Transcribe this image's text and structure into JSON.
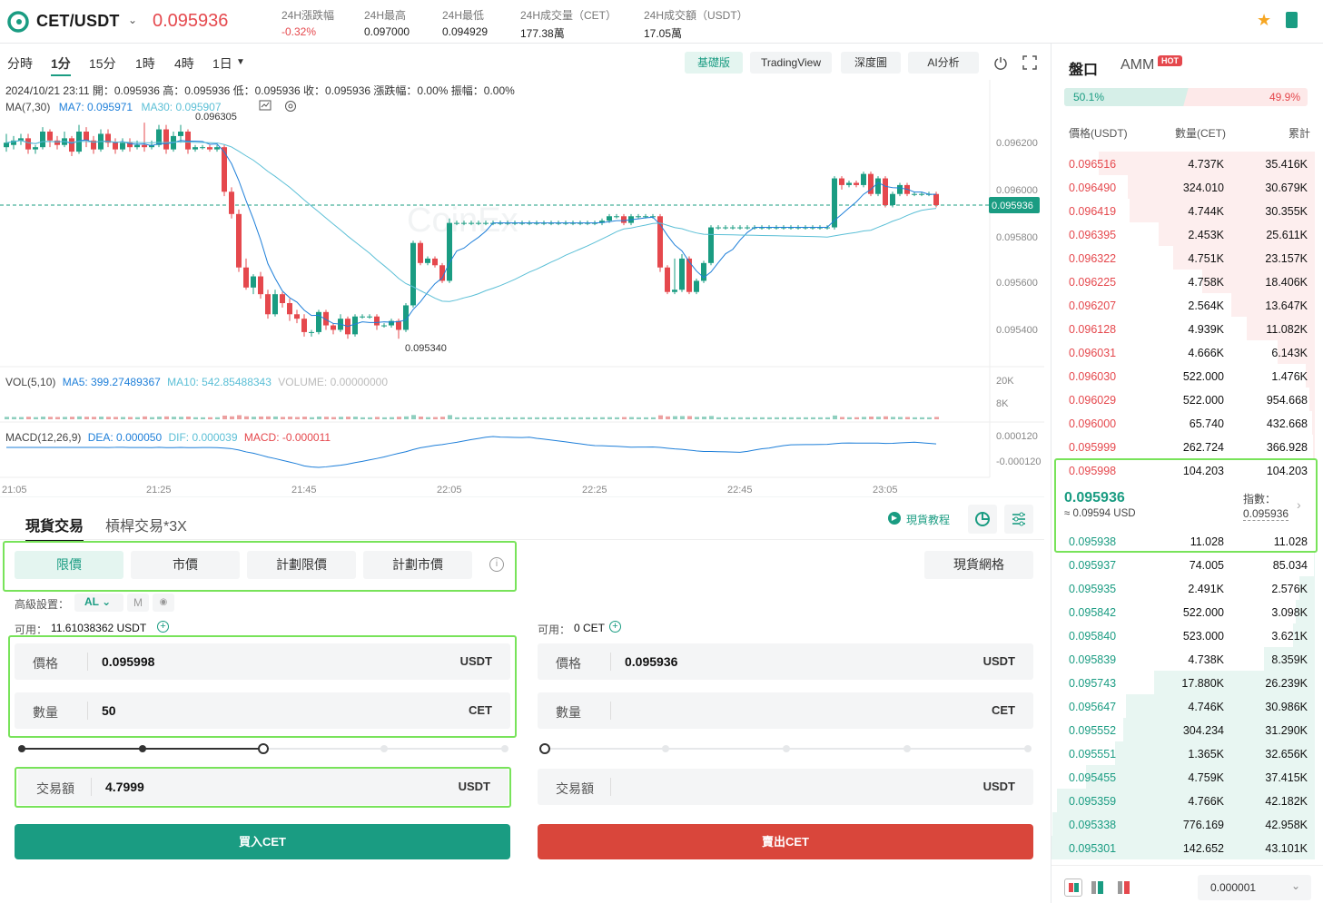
{
  "header": {
    "pair": "CET/USDT",
    "last_price": "0.095936",
    "stats": [
      {
        "label": "24H漲跌幅",
        "value": "-0.32%"
      },
      {
        "label": "24H最高",
        "value": "0.097000"
      },
      {
        "label": "24H最低",
        "value": "0.094929"
      },
      {
        "label": "24H成交量（CET）",
        "value": "177.38萬"
      },
      {
        "label": "24H成交額（USDT）",
        "value": "17.05萬"
      }
    ]
  },
  "toolbar": {
    "timeframes": [
      "分時",
      "1分",
      "15分",
      "1時",
      "4時",
      "1日"
    ],
    "views": [
      "基礎版",
      "TradingView",
      "深度圖",
      "AI分析"
    ]
  },
  "chart": {
    "ohlc_line": "2024/10/21 23:11  開：0.095936  高：0.095936  低：0.095936  收：0.095936  漲跌幅：0.00%  振幅：0.00%",
    "ma_label": "MA(7,30)",
    "ma7": "MA7: 0.095971",
    "ma30": "MA30: 0.095907",
    "high_mark": "0.096305",
    "low_mark": "0.095340",
    "price_axis": [
      "0.096200",
      "0.096000",
      "0.095800",
      "0.095600",
      "0.095400"
    ],
    "current_tag": "0.095936",
    "vol_label": "VOL(5,10)",
    "vol_ma5": "MA5: 399.27489367",
    "vol_ma10": "MA10: 542.85488343",
    "vol_volume": "VOLUME: 0.00000000",
    "vol_axis": [
      "20K",
      "8K"
    ],
    "macd_label": "MACD(12,26,9)",
    "macd_dea": "DEA: 0.000050",
    "macd_dif": "DIF: 0.000039",
    "macd_val": "MACD: -0.000011",
    "macd_axis": [
      "0.000120",
      "-0.000120"
    ],
    "time_axis": [
      "21:05",
      "21:25",
      "21:45",
      "22:05",
      "22:25",
      "22:45",
      "23:05"
    ],
    "watermark": "CoinEx"
  },
  "chart_data": {
    "type": "candlestick",
    "price_range": [
      0.09528,
      0.09638
    ],
    "candles": [
      [
        0.0962,
        0.09622,
        0.09618,
        0.09626
      ],
      [
        0.09621,
        0.09623,
        0.09619,
        0.09625
      ],
      [
        0.09623,
        0.09624,
        0.09621,
        0.09626
      ],
      [
        0.09624,
        0.09619,
        0.09617,
        0.09626
      ],
      [
        0.09619,
        0.0962,
        0.09617,
        0.09621
      ],
      [
        0.0962,
        0.09627,
        0.09619,
        0.09629
      ],
      [
        0.09627,
        0.09623,
        0.0962,
        0.09628
      ],
      [
        0.09623,
        0.09621,
        0.09619,
        0.09625
      ],
      [
        0.09621,
        0.09624,
        0.0962,
        0.09627
      ],
      [
        0.09624,
        0.09618,
        0.09616,
        0.09625
      ],
      [
        0.09618,
        0.09627,
        0.09617,
        0.0963
      ],
      [
        0.09627,
        0.09623,
        0.0962,
        0.09629
      ],
      [
        0.09623,
        0.09619,
        0.09617,
        0.09625
      ],
      [
        0.09619,
        0.09626,
        0.09618,
        0.09628
      ],
      [
        0.09626,
        0.09622,
        0.0962,
        0.09628
      ],
      [
        0.09622,
        0.09619,
        0.09617,
        0.09624
      ],
      [
        0.09619,
        0.09622,
        0.09618,
        0.09624
      ],
      [
        0.09622,
        0.0962,
        0.09618,
        0.09624
      ],
      [
        0.0962,
        0.09621,
        0.09619,
        0.09623
      ],
      [
        0.09621,
        0.0962,
        0.09618,
        0.09631
      ],
      [
        0.0962,
        0.09621,
        0.09619,
        0.09623
      ],
      [
        0.09621,
        0.09628,
        0.0962,
        0.0963
      ],
      [
        0.09628,
        0.09619,
        0.09617,
        0.0963
      ],
      [
        0.09619,
        0.09625,
        0.09618,
        0.09627
      ],
      [
        0.09625,
        0.09627,
        0.09622,
        0.0963
      ],
      [
        0.09627,
        0.09619,
        0.09617,
        0.09628
      ],
      [
        0.09619,
        0.0962,
        0.09618,
        0.09621
      ],
      [
        0.0962,
        0.0962,
        0.09619,
        0.09621
      ],
      [
        0.0962,
        0.09619,
        0.09618,
        0.09621
      ],
      [
        0.09619,
        0.0962,
        0.09618,
        0.09621
      ],
      [
        0.0962,
        0.096,
        0.09598,
        0.09621
      ],
      [
        0.096,
        0.0959,
        0.09588,
        0.09602
      ],
      [
        0.0959,
        0.09566,
        0.09564,
        0.09592
      ],
      [
        0.09566,
        0.09557,
        0.09556,
        0.0957
      ],
      [
        0.09557,
        0.09562,
        0.09554,
        0.09563
      ],
      [
        0.09562,
        0.09554,
        0.09552,
        0.09564
      ],
      [
        0.09554,
        0.09545,
        0.09543,
        0.09556
      ],
      [
        0.09545,
        0.09554,
        0.09544,
        0.09556
      ],
      [
        0.09554,
        0.0955,
        0.09548,
        0.09555
      ],
      [
        0.0955,
        0.09545,
        0.09542,
        0.09552
      ],
      [
        0.09545,
        0.09543,
        0.09541,
        0.09547
      ],
      [
        0.09543,
        0.09537,
        0.09535,
        0.09545
      ],
      [
        0.09537,
        0.09537,
        0.09535,
        0.09538
      ],
      [
        0.09537,
        0.09546,
        0.09536,
        0.09547
      ],
      [
        0.09546,
        0.0954,
        0.09538,
        0.09547
      ],
      [
        0.0954,
        0.09538,
        0.09536,
        0.09541
      ],
      [
        0.09538,
        0.09543,
        0.09537,
        0.09545
      ],
      [
        0.09543,
        0.09536,
        0.09534,
        0.09544
      ],
      [
        0.09536,
        0.09544,
        0.09535,
        0.09545
      ],
      [
        0.09544,
        0.09544,
        0.09543,
        0.09545
      ],
      [
        0.09544,
        0.09544,
        0.09543,
        0.09545
      ],
      [
        0.09544,
        0.0954,
        0.09538,
        0.09545
      ],
      [
        0.0954,
        0.0954,
        0.09539,
        0.09541
      ],
      [
        0.0954,
        0.09542,
        0.09539,
        0.09543
      ],
      [
        0.09542,
        0.09538,
        0.09534,
        0.09543
      ],
      [
        0.09538,
        0.09549,
        0.09537,
        0.0955
      ],
      [
        0.09549,
        0.09577,
        0.09548,
        0.09578
      ],
      [
        0.09577,
        0.09568,
        0.09567,
        0.09578
      ],
      [
        0.09568,
        0.0957,
        0.09567,
        0.09571
      ],
      [
        0.0957,
        0.09567,
        0.09566,
        0.09571
      ],
      [
        0.09567,
        0.0956,
        0.09559,
        0.09568
      ],
      [
        0.0956,
        0.09586,
        0.09559,
        0.09588
      ],
      [
        0.09586,
        0.09586,
        0.09585,
        0.09587
      ],
      [
        0.09586,
        0.09586,
        0.09585,
        0.09587
      ],
      [
        0.09586,
        0.09586,
        0.09585,
        0.09587
      ],
      [
        0.09586,
        0.09586,
        0.09585,
        0.09587
      ],
      [
        0.09586,
        0.09586,
        0.09585,
        0.09587
      ],
      [
        0.09586,
        0.09586,
        0.09585,
        0.09587
      ],
      [
        0.09586,
        0.09586,
        0.09585,
        0.09587
      ],
      [
        0.09586,
        0.09586,
        0.09585,
        0.09587
      ],
      [
        0.09586,
        0.09586,
        0.09585,
        0.09587
      ],
      [
        0.09586,
        0.09586,
        0.09585,
        0.09587
      ],
      [
        0.09586,
        0.09586,
        0.09585,
        0.09587
      ],
      [
        0.09586,
        0.09586,
        0.09585,
        0.09587
      ],
      [
        0.09586,
        0.09586,
        0.09585,
        0.09587
      ],
      [
        0.09586,
        0.09586,
        0.09585,
        0.09587
      ],
      [
        0.09586,
        0.09586,
        0.09585,
        0.09587
      ],
      [
        0.09586,
        0.09586,
        0.09585,
        0.09587
      ],
      [
        0.09586,
        0.09586,
        0.09585,
        0.09587
      ],
      [
        0.09586,
        0.09586,
        0.09585,
        0.09587
      ],
      [
        0.09586,
        0.09586,
        0.09585,
        0.09587
      ],
      [
        0.09586,
        0.09586,
        0.09585,
        0.09587
      ],
      [
        0.09586,
        0.09587,
        0.09585,
        0.09588
      ],
      [
        0.09587,
        0.09589,
        0.09586,
        0.0959
      ],
      [
        0.09589,
        0.09589,
        0.09588,
        0.0959
      ],
      [
        0.09589,
        0.09586,
        0.09585,
        0.0959
      ],
      [
        0.09586,
        0.09589,
        0.09585,
        0.0959
      ],
      [
        0.09589,
        0.09589,
        0.09588,
        0.0959
      ],
      [
        0.09589,
        0.09589,
        0.09588,
        0.0959
      ],
      [
        0.09589,
        0.09589,
        0.09588,
        0.0959
      ],
      [
        0.09589,
        0.09566,
        0.09564,
        0.0959
      ],
      [
        0.09566,
        0.09555,
        0.09554,
        0.09567
      ],
      [
        0.09555,
        0.09556,
        0.09554,
        0.0957
      ],
      [
        0.09556,
        0.0957,
        0.09555,
        0.09572
      ],
      [
        0.0957,
        0.09555,
        0.09554,
        0.09571
      ],
      [
        0.09555,
        0.0956,
        0.09554,
        0.09561
      ],
      [
        0.0956,
        0.09568,
        0.09559,
        0.09569
      ],
      [
        0.09568,
        0.09584,
        0.09567,
        0.09585
      ],
      [
        0.09584,
        0.09584,
        0.09583,
        0.09585
      ],
      [
        0.09584,
        0.09584,
        0.09583,
        0.09585
      ],
      [
        0.09584,
        0.09584,
        0.09583,
        0.09585
      ],
      [
        0.09584,
        0.09584,
        0.09583,
        0.09585
      ],
      [
        0.09584,
        0.09584,
        0.09583,
        0.09585
      ],
      [
        0.09584,
        0.09584,
        0.09583,
        0.09585
      ],
      [
        0.09584,
        0.09584,
        0.09583,
        0.09585
      ],
      [
        0.09584,
        0.09584,
        0.09583,
        0.09585
      ],
      [
        0.09584,
        0.09584,
        0.09583,
        0.09585
      ],
      [
        0.09584,
        0.09584,
        0.09583,
        0.09585
      ],
      [
        0.09584,
        0.09584,
        0.09583,
        0.09585
      ],
      [
        0.09584,
        0.09584,
        0.09583,
        0.09585
      ],
      [
        0.09584,
        0.09584,
        0.09583,
        0.09585
      ],
      [
        0.09584,
        0.09584,
        0.09583,
        0.09585
      ],
      [
        0.09584,
        0.09584,
        0.09583,
        0.09585
      ],
      [
        0.09584,
        0.09584,
        0.09583,
        0.09585
      ],
      [
        0.09584,
        0.09606,
        0.09583,
        0.09607
      ],
      [
        0.09606,
        0.09603,
        0.09601,
        0.09607
      ],
      [
        0.09603,
        0.09604,
        0.09602,
        0.09605
      ],
      [
        0.09604,
        0.09603,
        0.09602,
        0.09605
      ],
      [
        0.09603,
        0.09608,
        0.09602,
        0.09609
      ],
      [
        0.09608,
        0.09599,
        0.09598,
        0.09609
      ],
      [
        0.09599,
        0.09606,
        0.09598,
        0.09607
      ],
      [
        0.09606,
        0.09594,
        0.09593,
        0.09607
      ],
      [
        0.09594,
        0.09599,
        0.09593,
        0.096
      ],
      [
        0.09599,
        0.09603,
        0.09598,
        0.09604
      ],
      [
        0.09603,
        0.09599,
        0.09598,
        0.09604
      ],
      [
        0.09599,
        0.09599,
        0.09598,
        0.096
      ],
      [
        0.09599,
        0.09599,
        0.09598,
        0.096
      ],
      [
        0.09599,
        0.09599,
        0.09598,
        0.096
      ],
      [
        0.09599,
        0.09594,
        0.09593,
        0.096
      ]
    ]
  },
  "trade": {
    "tabs": [
      "現貨交易",
      "槓桿交易*3X"
    ],
    "tutorial": "現貨教程",
    "order_types": [
      "限價",
      "市價",
      "計劃限價",
      "計劃市價"
    ],
    "grid_btn": "現貨網格",
    "advanced_label": "高級設置：",
    "advanced_value": "AL",
    "advanced_m": "M",
    "buy": {
      "available_label": "可用：",
      "available_value": "11.61038362 USDT",
      "price_label": "價格",
      "price_value": "0.095998",
      "price_unit": "USDT",
      "qty_label": "數量",
      "qty_value": "50",
      "qty_unit": "CET",
      "total_label": "交易額",
      "total_value": "4.7999",
      "total_unit": "USDT",
      "button": "買入CET",
      "slider_fraction": 0.5
    },
    "sell": {
      "available_label": "可用：",
      "available_value": "0 CET",
      "price_label": "價格",
      "price_value": "0.095936",
      "price_unit": "USDT",
      "qty_label": "數量",
      "qty_value": "",
      "qty_unit": "CET",
      "total_label": "交易額",
      "total_value": "",
      "total_unit": "USDT",
      "button": "賣出CET",
      "slider_fraction": 0
    }
  },
  "orderbook": {
    "tab_book": "盤口",
    "tab_amm": "AMM",
    "hot": "HOT",
    "buy_ratio": "50.1%",
    "sell_ratio": "49.9%",
    "headers": [
      "價格(USDT)",
      "數量(CET)",
      "累計"
    ],
    "asks": [
      {
        "p": "0.096516",
        "a": "4.737K",
        "t": "35.416K"
      },
      {
        "p": "0.096490",
        "a": "324.010",
        "t": "30.679K"
      },
      {
        "p": "0.096419",
        "a": "4.744K",
        "t": "30.355K"
      },
      {
        "p": "0.096395",
        "a": "2.453K",
        "t": "25.611K"
      },
      {
        "p": "0.096322",
        "a": "4.751K",
        "t": "23.157K"
      },
      {
        "p": "0.096225",
        "a": "4.758K",
        "t": "18.406K"
      },
      {
        "p": "0.096207",
        "a": "2.564K",
        "t": "13.647K"
      },
      {
        "p": "0.096128",
        "a": "4.939K",
        "t": "11.082K"
      },
      {
        "p": "0.096031",
        "a": "4.666K",
        "t": "6.143K"
      },
      {
        "p": "0.096030",
        "a": "522.000",
        "t": "1.476K"
      },
      {
        "p": "0.096029",
        "a": "522.000",
        "t": "954.668"
      },
      {
        "p": "0.096000",
        "a": "65.740",
        "t": "432.668"
      },
      {
        "p": "0.095999",
        "a": "262.724",
        "t": "366.928"
      },
      {
        "p": "0.095998",
        "a": "104.203",
        "t": "104.203"
      }
    ],
    "mid_price": "0.095936",
    "mid_usd": "≈ 0.09594 USD",
    "index_label": "指數：",
    "index_value": "0.095936",
    "bids": [
      {
        "p": "0.095938",
        "a": "11.028",
        "t": "11.028"
      },
      {
        "p": "0.095937",
        "a": "74.005",
        "t": "85.034"
      },
      {
        "p": "0.095935",
        "a": "2.491K",
        "t": "2.576K"
      },
      {
        "p": "0.095842",
        "a": "522.000",
        "t": "3.098K"
      },
      {
        "p": "0.095840",
        "a": "523.000",
        "t": "3.621K"
      },
      {
        "p": "0.095839",
        "a": "4.738K",
        "t": "8.359K"
      },
      {
        "p": "0.095743",
        "a": "17.880K",
        "t": "26.239K"
      },
      {
        "p": "0.095647",
        "a": "4.746K",
        "t": "30.986K"
      },
      {
        "p": "0.095552",
        "a": "304.234",
        "t": "31.290K"
      },
      {
        "p": "0.095551",
        "a": "1.365K",
        "t": "32.656K"
      },
      {
        "p": "0.095455",
        "a": "4.759K",
        "t": "37.415K"
      },
      {
        "p": "0.095359",
        "a": "4.766K",
        "t": "42.182K"
      },
      {
        "p": "0.095338",
        "a": "776.169",
        "t": "42.958K"
      },
      {
        "p": "0.095301",
        "a": "142.652",
        "t": "43.101K"
      }
    ],
    "precision": "0.000001"
  },
  "colors": {
    "up": "#1a9c82",
    "down": "#e5484d",
    "highlight": "#78e35a"
  }
}
